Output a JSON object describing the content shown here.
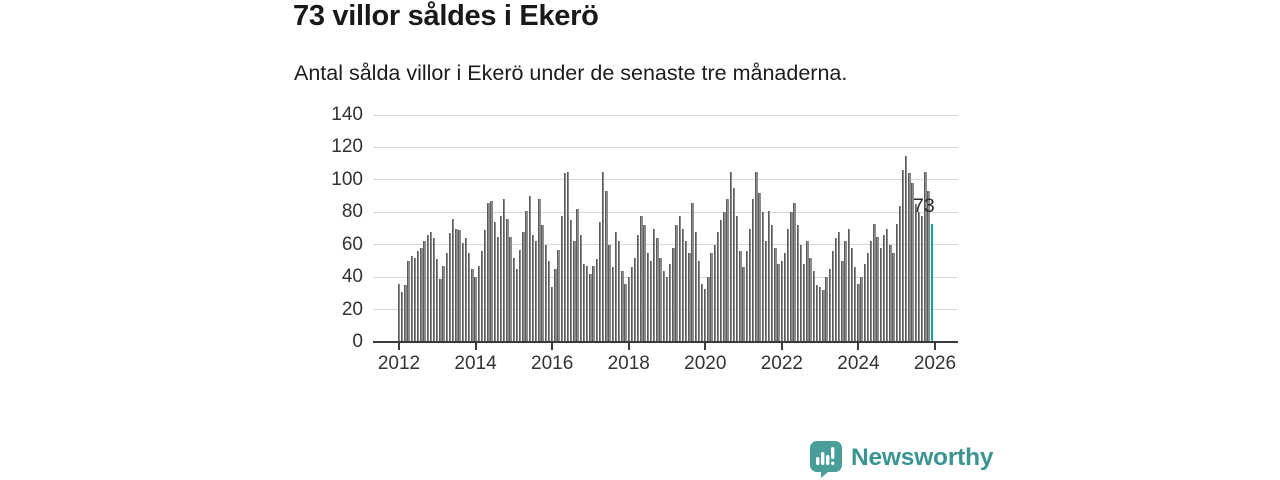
{
  "header": {
    "title": "73 villor såldes i Ekerö",
    "subtitle": "Antal sålda villor i Ekerö under de senaste tre månaderna."
  },
  "chart_data": {
    "type": "bar",
    "title": "73 villor såldes i Ekerö",
    "subtitle": "Antal sålda villor i Ekerö under de senaste tre månaderna.",
    "x_start": "2012-01",
    "x_interval": "month",
    "values": [
      36,
      31,
      35,
      50,
      53,
      52,
      56,
      58,
      62,
      66,
      68,
      64,
      51,
      39,
      47,
      55,
      67,
      76,
      70,
      69,
      61,
      64,
      55,
      45,
      40,
      47,
      56,
      69,
      86,
      87,
      74,
      65,
      78,
      88,
      76,
      65,
      52,
      45,
      57,
      68,
      81,
      90,
      66,
      62,
      88,
      72,
      60,
      50,
      34,
      45,
      57,
      78,
      104,
      105,
      75,
      62,
      82,
      66,
      48,
      47,
      42,
      47,
      51,
      74,
      105,
      93,
      60,
      46,
      68,
      62,
      44,
      36,
      40,
      46,
      52,
      66,
      78,
      72,
      55,
      50,
      70,
      64,
      52,
      44,
      40,
      48,
      58,
      72,
      78,
      70,
      62,
      55,
      86,
      68,
      50,
      36,
      33,
      40,
      55,
      60,
      68,
      75,
      80,
      88,
      105,
      95,
      78,
      56,
      46,
      56,
      70,
      88,
      105,
      92,
      80,
      62,
      81,
      72,
      58,
      48,
      50,
      55,
      70,
      80,
      86,
      72,
      60,
      48,
      62,
      52,
      44,
      35,
      34,
      32,
      40,
      45,
      56,
      64,
      68,
      50,
      62,
      70,
      58,
      46,
      36,
      40,
      48,
      55,
      62,
      73,
      65,
      58,
      66,
      70,
      60,
      55,
      73,
      84,
      106,
      115,
      104,
      98,
      85,
      80,
      78,
      105,
      93,
      73
    ],
    "highlight_last": true,
    "highlight_value": 73,
    "annotation": "73",
    "ylim": [
      0,
      140
    ],
    "yticks": [
      0,
      20,
      40,
      60,
      80,
      100,
      120,
      140
    ],
    "xticks": [
      "2012",
      "2014",
      "2016",
      "2018",
      "2020",
      "2022",
      "2024",
      "2026"
    ],
    "grid": "horizontal",
    "legend": "none",
    "bar_color": "#8b8b8b",
    "bar_edge_color": "#5c5c5c",
    "highlight_color": "#12a5a0",
    "axis_color": "#3a3a3a",
    "grid_color": "#d9d9d9"
  },
  "footer": {
    "brand": "Newsworthy",
    "logo_icon": "bar-chart-speech-bubble",
    "brand_color": "#3a948f",
    "icon_color": "#4a9e99"
  }
}
